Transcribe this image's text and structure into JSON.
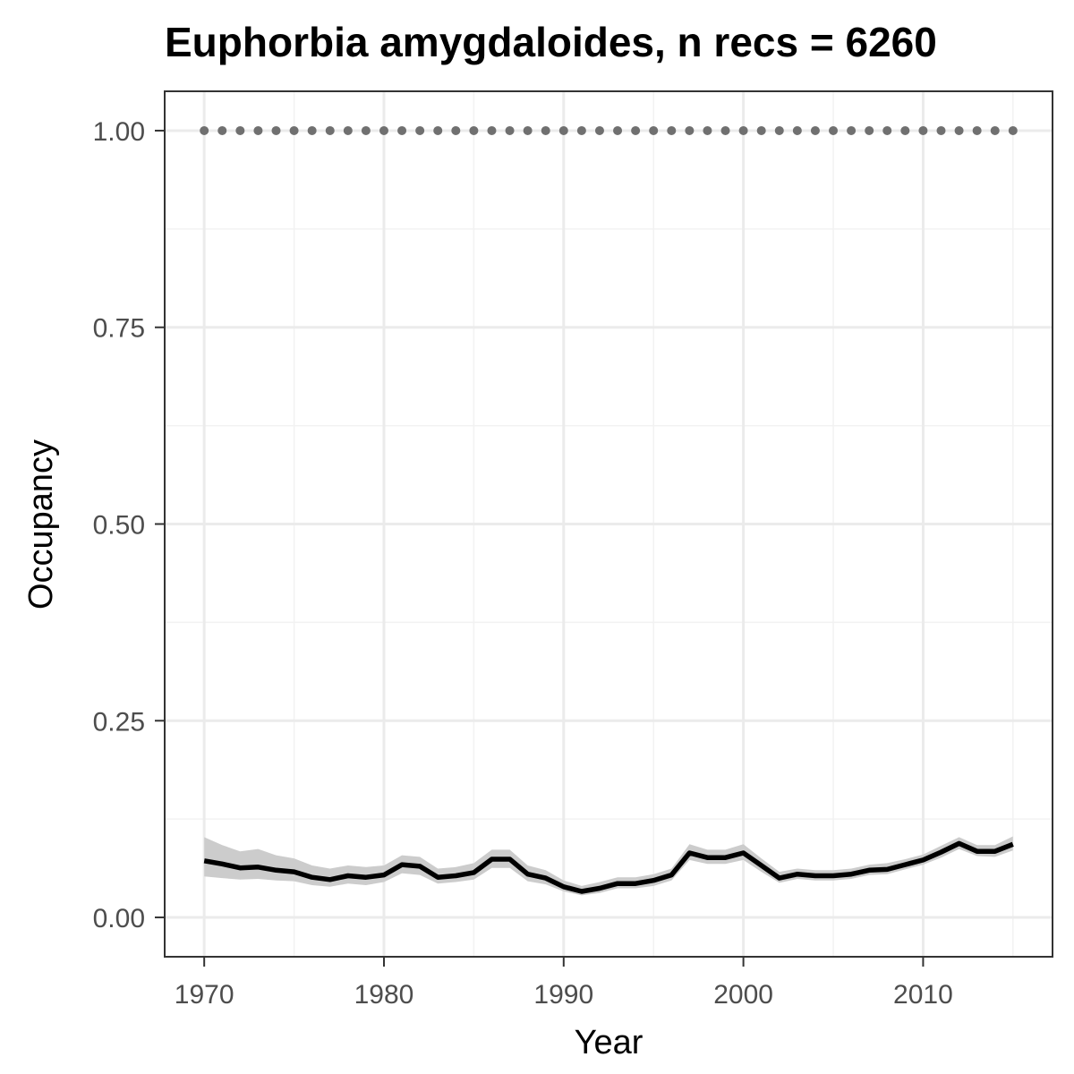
{
  "chart_data": {
    "type": "line",
    "title": "Euphorbia amygdaloides, n recs = 6260",
    "xlabel": "Year",
    "ylabel": "Occupancy",
    "xlim": [
      1967.8,
      2017.2
    ],
    "ylim": [
      -0.05,
      1.05
    ],
    "x_ticks": [
      1970,
      1980,
      1990,
      2000,
      2010
    ],
    "x_tick_labels": [
      "1970",
      "1980",
      "1990",
      "2000",
      "2010"
    ],
    "y_ticks": [
      0,
      0.25,
      0.5,
      0.75,
      1
    ],
    "y_tick_labels": [
      "0.00",
      "0.25",
      "0.50",
      "0.75",
      "1.00"
    ],
    "x_minor_ticks": [
      1975,
      1985,
      1995,
      2005,
      2015
    ],
    "y_minor_ticks": [
      0.125,
      0.375,
      0.625,
      0.875
    ],
    "grid": true,
    "legend": "none",
    "x": [
      1970,
      1971,
      1972,
      1973,
      1974,
      1975,
      1976,
      1977,
      1978,
      1979,
      1980,
      1981,
      1982,
      1983,
      1984,
      1985,
      1986,
      1987,
      1988,
      1989,
      1990,
      1991,
      1992,
      1993,
      1994,
      1995,
      1996,
      1997,
      1998,
      1999,
      2000,
      2001,
      2002,
      2003,
      2004,
      2005,
      2006,
      2007,
      2008,
      2009,
      2010,
      2011,
      2012,
      2013,
      2014,
      2015
    ],
    "series": [
      {
        "role": "line",
        "color": "#000000",
        "values": [
          0.072,
          0.068,
          0.063,
          0.064,
          0.06,
          0.058,
          0.051,
          0.048,
          0.053,
          0.051,
          0.054,
          0.067,
          0.065,
          0.051,
          0.053,
          0.057,
          0.074,
          0.074,
          0.055,
          0.05,
          0.039,
          0.033,
          0.037,
          0.043,
          0.043,
          0.047,
          0.054,
          0.082,
          0.076,
          0.076,
          0.082,
          0.066,
          0.05,
          0.055,
          0.053,
          0.053,
          0.055,
          0.06,
          0.061,
          0.067,
          0.073,
          0.083,
          0.094,
          0.084,
          0.084,
          0.093
        ]
      },
      {
        "role": "ribbon",
        "color": "#cccccc",
        "lower": [
          0.052,
          0.05,
          0.048,
          0.049,
          0.047,
          0.046,
          0.041,
          0.039,
          0.043,
          0.041,
          0.045,
          0.056,
          0.054,
          0.043,
          0.045,
          0.048,
          0.063,
          0.063,
          0.046,
          0.042,
          0.033,
          0.028,
          0.031,
          0.037,
          0.037,
          0.04,
          0.047,
          0.073,
          0.068,
          0.068,
          0.073,
          0.058,
          0.044,
          0.049,
          0.047,
          0.047,
          0.049,
          0.054,
          0.055,
          0.061,
          0.067,
          0.076,
          0.087,
          0.078,
          0.077,
          0.085
        ],
        "upper": [
          0.102,
          0.092,
          0.084,
          0.087,
          0.079,
          0.075,
          0.066,
          0.062,
          0.066,
          0.064,
          0.066,
          0.079,
          0.077,
          0.062,
          0.064,
          0.069,
          0.086,
          0.086,
          0.066,
          0.06,
          0.047,
          0.04,
          0.045,
          0.051,
          0.051,
          0.055,
          0.062,
          0.093,
          0.086,
          0.086,
          0.093,
          0.075,
          0.058,
          0.062,
          0.06,
          0.06,
          0.062,
          0.067,
          0.069,
          0.074,
          0.08,
          0.091,
          0.102,
          0.092,
          0.092,
          0.103
        ]
      },
      {
        "role": "points",
        "color": "#707070",
        "values": [
          1,
          1,
          1,
          1,
          1,
          1,
          1,
          1,
          1,
          1,
          1,
          1,
          1,
          1,
          1,
          1,
          1,
          1,
          1,
          1,
          1,
          1,
          1,
          1,
          1,
          1,
          1,
          1,
          1,
          1,
          1,
          1,
          1,
          1,
          1,
          1,
          1,
          1,
          1,
          1,
          1,
          1,
          1,
          1,
          1,
          1
        ]
      }
    ]
  }
}
